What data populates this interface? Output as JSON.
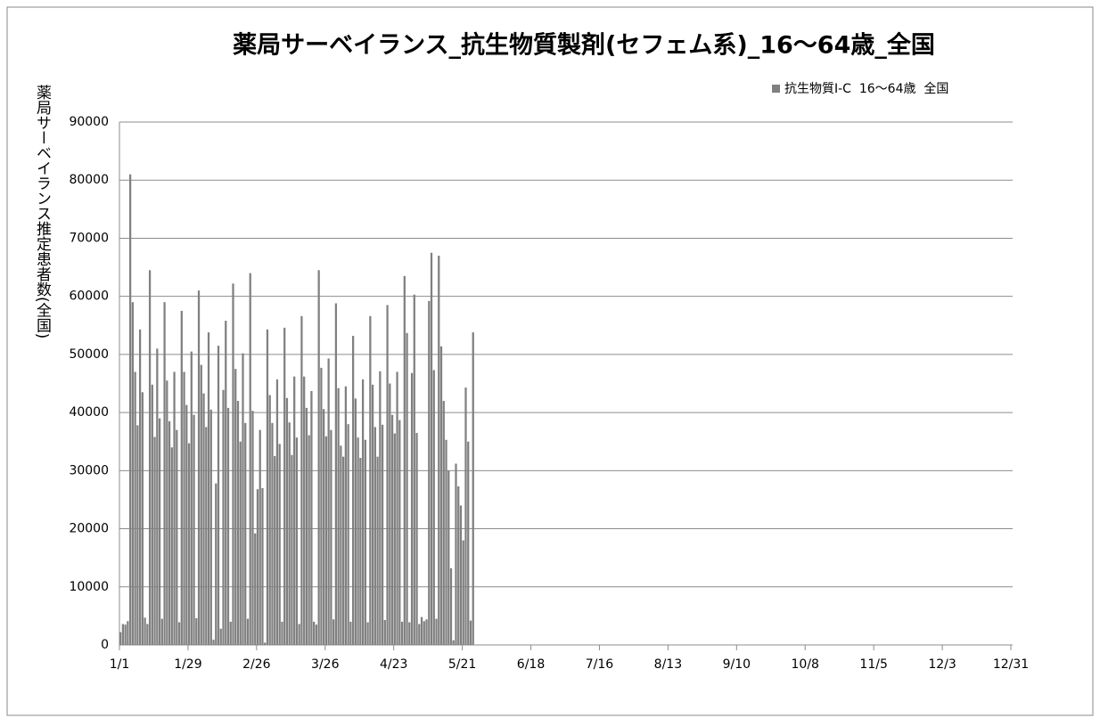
{
  "chart_data": {
    "type": "bar",
    "title": "薬局サーベイランス_抗生物質製剤(セフェム系)_16～64歳_全国",
    "y_label": "薬局サーベイランス推定患者数(全国)",
    "categories": [
      "1/1",
      null,
      null,
      null,
      null,
      null,
      null,
      null,
      null,
      null,
      null,
      null,
      null,
      null,
      null,
      null,
      null,
      null,
      null,
      null,
      null,
      null,
      null,
      null,
      null,
      null,
      null,
      null,
      "1/29",
      null,
      null,
      null,
      null,
      null,
      null,
      null,
      null,
      null,
      null,
      null,
      null,
      null,
      null,
      null,
      null,
      null,
      null,
      null,
      null,
      null,
      null,
      null,
      null,
      null,
      null,
      null,
      "2/26",
      null,
      null,
      null,
      null,
      null,
      null,
      null,
      null,
      null,
      null,
      null,
      null,
      null,
      null,
      null,
      null,
      null,
      null,
      null,
      null,
      null,
      null,
      null,
      null,
      null,
      null,
      null,
      "3/26",
      null,
      null,
      null,
      null,
      null,
      null,
      null,
      null,
      null,
      null,
      null,
      null,
      null,
      null,
      null,
      null,
      null,
      null,
      null,
      null,
      null,
      null,
      null,
      null,
      null,
      null,
      null,
      "4/23",
      null,
      null,
      null,
      null,
      null,
      null,
      null,
      null,
      null,
      null,
      null,
      null,
      null,
      null,
      null,
      null,
      null,
      null,
      null,
      null,
      null,
      null,
      null,
      null,
      null,
      null,
      null,
      "5/21",
      null,
      null,
      null,
      null,
      null,
      null,
      null,
      null,
      null,
      null,
      null,
      null,
      null,
      null,
      null,
      null,
      null,
      null,
      null,
      null,
      null,
      null,
      null,
      null,
      null,
      null,
      null,
      "6/18",
      null,
      null,
      null,
      null,
      null,
      null,
      null,
      null,
      null,
      null,
      null,
      null,
      null,
      null,
      null,
      null,
      null,
      null,
      null,
      null,
      null,
      null,
      null,
      null,
      null,
      null,
      null,
      "7/16",
      null,
      null,
      null,
      null,
      null,
      null,
      null,
      null,
      null,
      null,
      null,
      null,
      null,
      null,
      null,
      null,
      null,
      null,
      null,
      null,
      null,
      null,
      null,
      null,
      null,
      null,
      null,
      "8/13",
      null,
      null,
      null,
      null,
      null,
      null,
      null,
      null,
      null,
      null,
      null,
      null,
      null,
      null,
      null,
      null,
      null,
      null,
      null,
      null,
      null,
      null,
      null,
      null,
      null,
      null,
      null,
      "9/10",
      null,
      null,
      null,
      null,
      null,
      null,
      null,
      null,
      null,
      null,
      null,
      null,
      null,
      null,
      null,
      null,
      null,
      null,
      null,
      null,
      null,
      null,
      null,
      null,
      null,
      null,
      null,
      "10/8",
      null,
      null,
      null,
      null,
      null,
      null,
      null,
      null,
      null,
      null,
      null,
      null,
      null,
      null,
      null,
      null,
      null,
      null,
      null,
      null,
      null,
      null,
      null,
      null,
      null,
      null,
      null,
      "11/5",
      null,
      null,
      null,
      null,
      null,
      null,
      null,
      null,
      null,
      null,
      null,
      null,
      null,
      null,
      null,
      null,
      null,
      null,
      null,
      null,
      null,
      null,
      null,
      null,
      null,
      null,
      null,
      "12/3",
      null,
      null,
      null,
      null,
      null,
      null,
      null,
      null,
      null,
      null,
      null,
      null,
      null,
      null,
      null,
      null,
      null,
      null,
      null,
      null,
      null,
      null,
      null,
      null,
      null,
      null,
      null,
      "12/31"
    ],
    "series": [
      {
        "name": "抗生物質Ⅰ-C  16～64歳  全国",
        "color": "#808080",
        "values": [
          2200,
          3600,
          3500,
          4100,
          81000,
          59000,
          47000,
          37800,
          54300,
          43500,
          4700,
          3600,
          64500,
          44800,
          35800,
          51000,
          39000,
          4500,
          59000,
          45500,
          38500,
          34000,
          47000,
          37000,
          3900,
          57500,
          47000,
          41300,
          34700,
          50500,
          39600,
          4600,
          61000,
          48200,
          43300,
          37500,
          53800,
          40500,
          900,
          27800,
          51500,
          2800,
          43900,
          55800,
          40800,
          4000,
          62200,
          47500,
          42000,
          35000,
          50200,
          38200,
          4500,
          64000,
          40300,
          19200,
          26800,
          37000,
          27000,
          400,
          54300,
          43000,
          38200,
          32500,
          45700,
          34600,
          4000,
          54600,
          42500,
          38300,
          32700,
          46200,
          35700,
          3600,
          56600,
          46200,
          40800,
          36100,
          43700,
          4000,
          3500,
          64500,
          47700,
          40600,
          35900,
          49300,
          37000,
          4400,
          58800,
          44200,
          34300,
          32400,
          44500,
          38000,
          4000,
          53200,
          42400,
          35700,
          32200,
          45700,
          35300,
          3900,
          56600,
          44800,
          37500,
          32400,
          47100,
          37900,
          4300,
          58500,
          45000,
          39600,
          36400,
          47000,
          38700,
          4000,
          63500,
          53700,
          3900,
          46800,
          60300,
          36500,
          3600,
          4800,
          4100,
          4400,
          59200,
          67500,
          47300,
          4500,
          67000,
          51400,
          42000,
          35300,
          30000,
          13200,
          800,
          31200,
          27300,
          24000,
          18000,
          44300,
          35000,
          4200,
          53800,
          null,
          null,
          null,
          null,
          null,
          null,
          null,
          null,
          null,
          null,
          null,
          null,
          null,
          null,
          null,
          null,
          null,
          null,
          null,
          null,
          null,
          null,
          null,
          null,
          null,
          null,
          null,
          null,
          null,
          null,
          null,
          null,
          null,
          null,
          null,
          null,
          null,
          null,
          null,
          null,
          null,
          null,
          null,
          null,
          null,
          null,
          null,
          null,
          null,
          null,
          null,
          null,
          null,
          null,
          null,
          null,
          null,
          null,
          null,
          null,
          null,
          null,
          null,
          null,
          null,
          null,
          null,
          null,
          null,
          null,
          null,
          null,
          null,
          null,
          null,
          null,
          null,
          null,
          null,
          null,
          null,
          null,
          null,
          null,
          null,
          null,
          null,
          null,
          null,
          null,
          null,
          null,
          null,
          null,
          null,
          null,
          null,
          null,
          null,
          null,
          null,
          null,
          null,
          null,
          null,
          null,
          null,
          null,
          null,
          null,
          null,
          null,
          null,
          null,
          null,
          null,
          null,
          null,
          null,
          null,
          null,
          null,
          null,
          null,
          null,
          null,
          null,
          null,
          null,
          null,
          null,
          null,
          null,
          null,
          null,
          null,
          null,
          null,
          null,
          null,
          null,
          null,
          null,
          null,
          null,
          null,
          null,
          null,
          null,
          null,
          null,
          null,
          null,
          null,
          null,
          null,
          null,
          null,
          null,
          null,
          null,
          null,
          null,
          null,
          null,
          null,
          null,
          null,
          null,
          null,
          null,
          null,
          null,
          null,
          null,
          null,
          null,
          null,
          null,
          null,
          null,
          null,
          null,
          null,
          null,
          null,
          null,
          null,
          null,
          null,
          null,
          null,
          null,
          null,
          null,
          null,
          null,
          null,
          null,
          null,
          null,
          null,
          null,
          null,
          null,
          null,
          null,
          null,
          null,
          null,
          null,
          null,
          null,
          null,
          null,
          null,
          null,
          null,
          null,
          null
        ]
      }
    ],
    "ylim": [
      0,
      90000
    ],
    "yticks": [
      0,
      10000,
      20000,
      30000,
      40000,
      50000,
      60000,
      70000,
      80000,
      90000
    ],
    "grid": true,
    "legend": "top-right"
  }
}
